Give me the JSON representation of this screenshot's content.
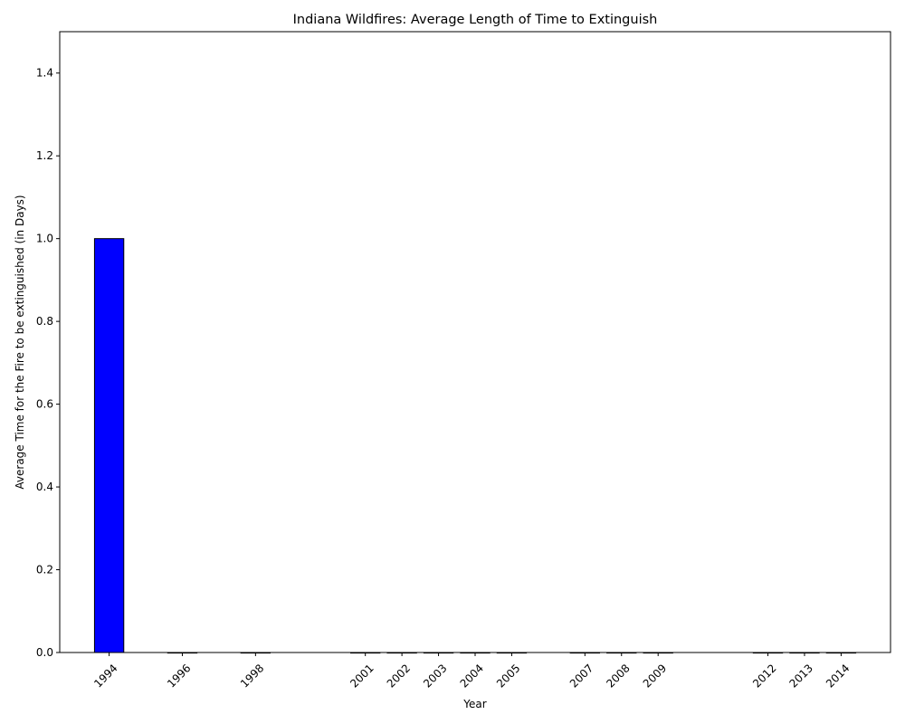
{
  "chart_data": {
    "type": "bar",
    "title": "Indiana Wildfires: Average Length of Time to Extinguish",
    "xlabel": "Year",
    "ylabel": "Average Time for the Fire to be extinguished (in Days)",
    "x": [
      1994,
      1996,
      1998,
      2001,
      2002,
      2003,
      2004,
      2005,
      2007,
      2008,
      2009,
      2012,
      2013,
      2014
    ],
    "values": [
      1.0,
      0,
      0,
      0,
      0,
      0,
      0,
      0,
      0,
      0,
      0,
      0,
      0,
      0
    ],
    "ylim": [
      0,
      1.5
    ],
    "yticks": [
      "0.0",
      "0.2",
      "0.4",
      "0.6",
      "0.8",
      "1.0",
      "1.2",
      "1.4"
    ],
    "bar_color": "#0000ff",
    "edge_color": "#000000",
    "grid": false,
    "xtick_rotation": 45
  }
}
